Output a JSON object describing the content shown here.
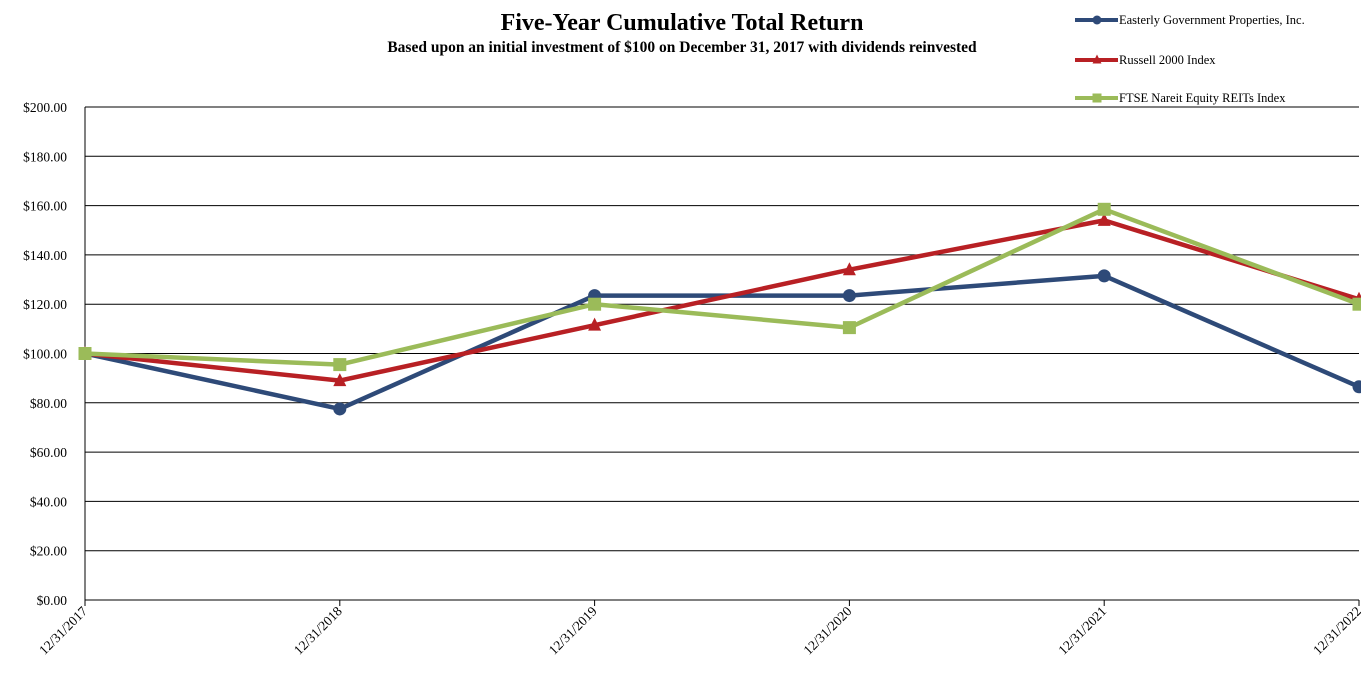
{
  "chart_data": {
    "type": "line",
    "title": "Five-Year Cumulative Total Return",
    "subtitle": "Based upon an initial investment of $100 on December 31, 2017 with dividends reinvested",
    "xlabel": "",
    "ylabel": "",
    "categories": [
      "12/31/2017",
      "12/31/2018",
      "12/31/2019",
      "12/31/2020",
      "12/31/2021",
      "12/31/2022"
    ],
    "ylim": [
      0,
      200
    ],
    "y_ticks": [
      "$0.00",
      "$20.00",
      "$40.00",
      "$60.00",
      "$80.00",
      "$100.00",
      "$120.00",
      "$140.00",
      "$160.00",
      "$180.00",
      "$200.00"
    ],
    "grid": true,
    "legend_position": "top-right",
    "series": [
      {
        "name": "Easterly Government Properties, Inc.",
        "color": "#2E4A78",
        "marker": "circle",
        "values": [
          100,
          77.5,
          123.5,
          123.5,
          131.5,
          86.5
        ]
      },
      {
        "name": "Russell 2000 Index",
        "color": "#B82024",
        "marker": "triangle",
        "values": [
          100,
          89,
          111.5,
          134,
          154,
          122
        ]
      },
      {
        "name": "FTSE Nareit Equity REITs Index",
        "color": "#9BBB59",
        "marker": "square",
        "values": [
          100,
          95.5,
          120,
          110.5,
          158.5,
          120
        ]
      }
    ]
  }
}
